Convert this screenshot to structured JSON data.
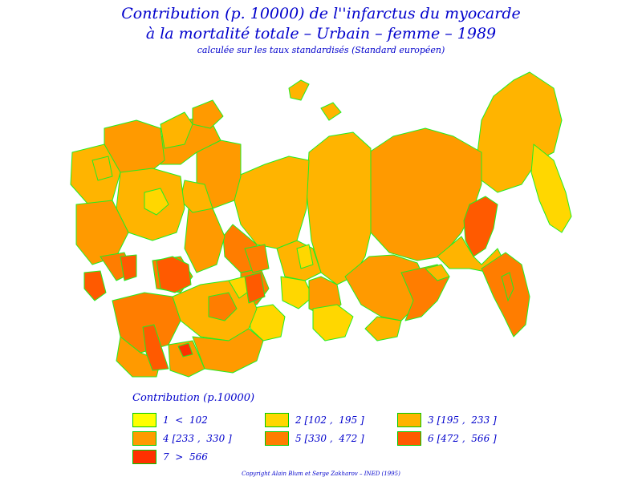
{
  "title": {
    "line1": "Contribution (p. 10000) de l''infarctus du myocarde",
    "line2": "à la mortalité totale – Urbain – femme – 1989",
    "line3": "calculée sur les taux standardisés (Standard européen)"
  },
  "legend": {
    "title": "Contribution (p.10000)",
    "items": [
      {
        "label": "1  <  102",
        "color": "#ffff00"
      },
      {
        "label": "2 [102 ,  195 ]",
        "color": "#ffd700"
      },
      {
        "label": "3 [195 ,  233 ]",
        "color": "#ffb400"
      },
      {
        "label": "4 [233 ,  330 ]",
        "color": "#ff9a00"
      },
      {
        "label": "5 [330 ,  472 ]",
        "color": "#ff7d00"
      },
      {
        "label": "6 [472 ,  566 ]",
        "color": "#ff5a00"
      },
      {
        "label": "7  >  566",
        "color": "#ff3000"
      }
    ]
  },
  "copyright": "Copyright Alain Blum et Serge Zakharov  –  INED (1995)",
  "colors": {
    "title_text": "#0000cc",
    "region_border": "#22ee22",
    "background": "#ffffff"
  }
}
